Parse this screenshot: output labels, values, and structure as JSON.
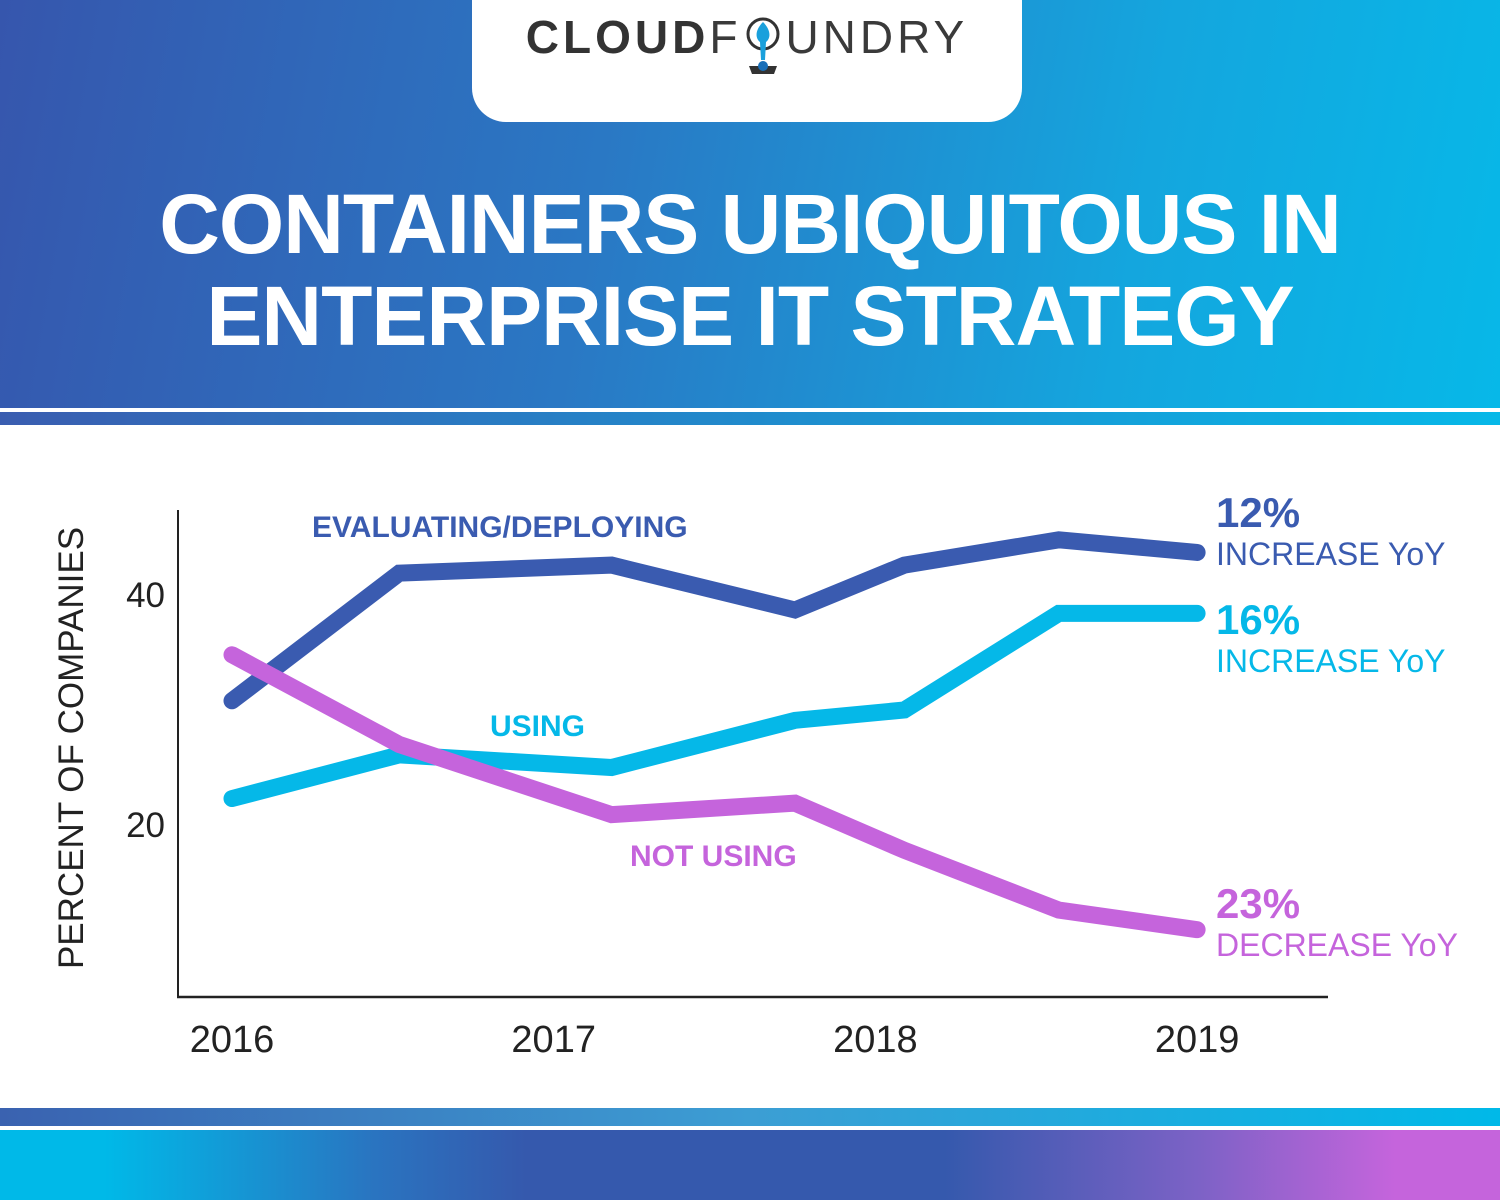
{
  "logo": {
    "text_bold": "CLOUD",
    "text_light": "FOUNDRY",
    "text_light_after": "UNDRY",
    "text_light_before": "F"
  },
  "header": {
    "title_line1": "CONTAINERS UBIQUITOUS IN",
    "title_line2": "ENTERPRISE IT STRATEGY"
  },
  "colors": {
    "evaluating": "#3a5bb0",
    "using": "#05b8e8",
    "not_using": "#c564dc",
    "axis": "#222222"
  },
  "chart_data": {
    "type": "line",
    "ylabel": "PERCENT OF COMPANIES",
    "xlabel": "",
    "x_ticks": [
      "2016",
      "2017",
      "2018",
      "2019"
    ],
    "x_tick_values": [
      2016,
      2017,
      2018,
      2019
    ],
    "y_ticks": [
      "40",
      "20"
    ],
    "y_tick_values": [
      40,
      20
    ],
    "xlim": [
      2015.85,
      2019.4
    ],
    "ylim": [
      5,
      47.5
    ],
    "grid": false,
    "legend": "inline labels",
    "x": [
      2016,
      2016.52,
      2017.18,
      2017.75,
      2018.09,
      2018.57,
      2019
    ],
    "series": [
      {
        "name": "EVALUATING/DEPLOYING",
        "key": "evaluating",
        "values": [
          30.8,
          41.9,
          42.6,
          38.7,
          42.6,
          44.8,
          43.7
        ],
        "annotation": {
          "value": "12%",
          "text": "INCREASE YoY"
        }
      },
      {
        "name": "USING",
        "key": "using",
        "values": [
          22.3,
          26.1,
          25.0,
          29.1,
          30.0,
          38.4,
          38.4
        ],
        "annotation": {
          "value": "16%",
          "text": "INCREASE YoY"
        }
      },
      {
        "name": "NOT USING",
        "key": "not_using",
        "values": [
          34.8,
          27.0,
          20.9,
          21.9,
          17.8,
          12.6,
          10.9
        ],
        "annotation": {
          "value": "23%",
          "text": "DECREASE YoY"
        }
      }
    ]
  }
}
